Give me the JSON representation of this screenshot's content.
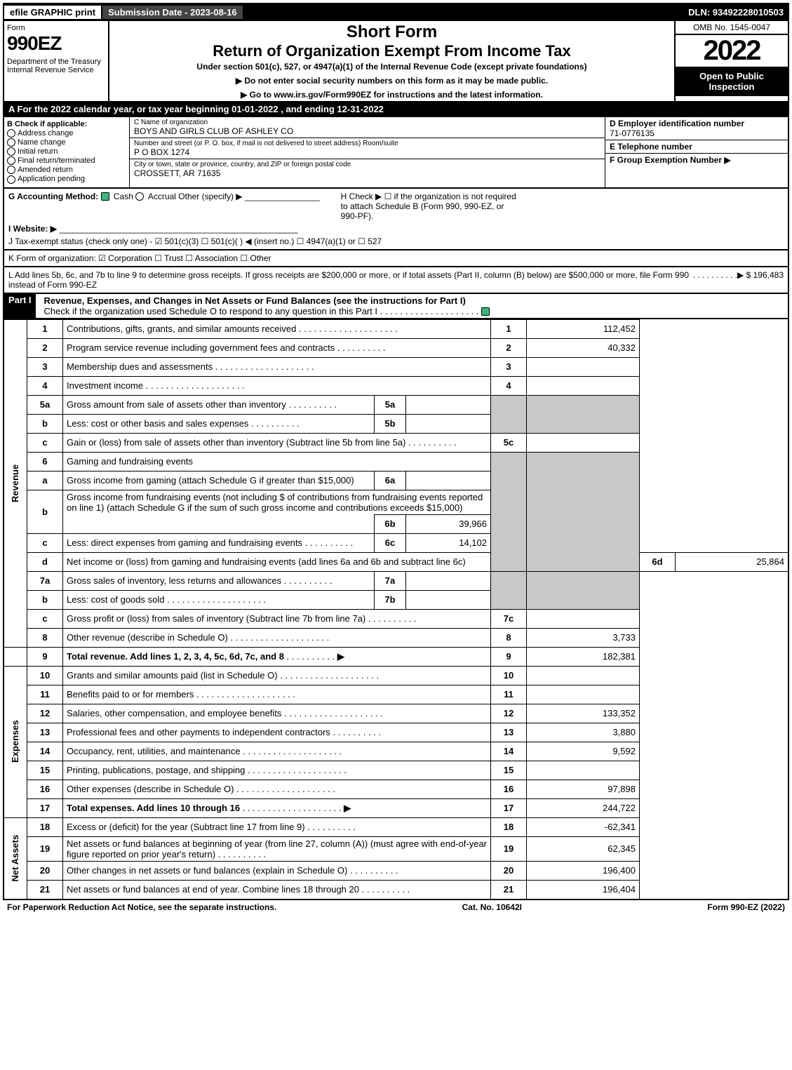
{
  "topbar": {
    "efile": "efile GRAPHIC print",
    "subdate": "Submission Date - 2023-08-16",
    "dln": "DLN: 93492228010503"
  },
  "header": {
    "form_word": "Form",
    "form_num": "990EZ",
    "dept": "Department of the Treasury\nInternal Revenue Service",
    "short": "Short Form",
    "title": "Return of Organization Exempt From Income Tax",
    "under": "Under section 501(c), 527, or 4947(a)(1) of the Internal Revenue Code (except private foundations)",
    "warn": "▶ Do not enter social security numbers on this form as it may be made public.",
    "goto": "▶ Go to www.irs.gov/Form990EZ for instructions and the latest information.",
    "omb": "OMB No. 1545-0047",
    "year": "2022",
    "open": "Open to Public Inspection"
  },
  "A": "A  For the 2022 calendar year, or tax year beginning 01-01-2022 , and ending 12-31-2022",
  "B": {
    "title": "B  Check if applicable:",
    "opts": [
      "Address change",
      "Name change",
      "Initial return",
      "Final return/terminated",
      "Amended return",
      "Application pending"
    ]
  },
  "C": {
    "name_lbl": "C Name of organization",
    "name": "BOYS AND GIRLS CLUB OF ASHLEY CO",
    "addr_lbl": "Number and street (or P. O. box, if mail is not delivered to street address)       Room/suite",
    "addr": "P O BOX 1274",
    "city_lbl": "City or town, state or province, country, and ZIP or foreign postal code",
    "city": "CROSSETT, AR  71635"
  },
  "D": {
    "ein_lbl": "D Employer identification number",
    "ein": "71-0776135",
    "tel_lbl": "E Telephone number",
    "tel": "",
    "grp_lbl": "F Group Exemption Number  ▶",
    "grp": ""
  },
  "GHI": {
    "g": "G Accounting Method:",
    "g_cash": "Cash",
    "g_accr": "Accrual",
    "g_other": "Other (specify) ▶",
    "h": "H  Check ▶  ☐  if the organization is not required to attach Schedule B (Form 990, 990-EZ, or 990-PF).",
    "i": "I Website: ▶",
    "j": "J Tax-exempt status (check only one) -  ☑ 501(c)(3)  ☐ 501(c)(  ) ◀ (insert no.)  ☐ 4947(a)(1) or  ☐ 527",
    "k": "K Form of organization:  ☑ Corporation   ☐ Trust   ☐ Association   ☐ Other",
    "l": "L Add lines 5b, 6c, and 7b to line 9 to determine gross receipts. If gross receipts are $200,000 or more, or if total assets (Part II, column (B) below) are $500,000 or more, file Form 990 instead of Form 990-EZ",
    "l_amt": "▶ $ 196,483"
  },
  "part1": {
    "title": "Revenue, Expenses, and Changes in Net Assets or Fund Balances (see the instructions for Part I)",
    "check": "Check if the organization used Schedule O to respond to any question in this Part I"
  },
  "rev_label": "Revenue",
  "exp_label": "Expenses",
  "na_label": "Net Assets",
  "lines": {
    "1": {
      "d": "Contributions, gifts, grants, and similar amounts received",
      "a": "112,452"
    },
    "2": {
      "d": "Program service revenue including government fees and contracts",
      "a": "40,332"
    },
    "3": {
      "d": "Membership dues and assessments",
      "a": ""
    },
    "4": {
      "d": "Investment income",
      "a": ""
    },
    "5a": {
      "d": "Gross amount from sale of assets other than inventory",
      "sv": ""
    },
    "5b": {
      "d": "Less: cost or other basis and sales expenses",
      "sv": ""
    },
    "5c": {
      "d": "Gain or (loss) from sale of assets other than inventory (Subtract line 5b from line 5a)",
      "a": ""
    },
    "6": {
      "d": "Gaming and fundraising events"
    },
    "6a": {
      "d": "Gross income from gaming (attach Schedule G if greater than $15,000)",
      "sv": ""
    },
    "6b_pre": "Gross income from fundraising events (not including $                      of contributions from fundraising events reported on line 1) (attach Schedule G if the sum of such gross income and contributions exceeds $15,000)",
    "6b": {
      "sv": "39,966"
    },
    "6c": {
      "d": "Less: direct expenses from gaming and fundraising events",
      "sv": "14,102"
    },
    "6d": {
      "d": "Net income or (loss) from gaming and fundraising events (add lines 6a and 6b and subtract line 6c)",
      "a": "25,864"
    },
    "7a": {
      "d": "Gross sales of inventory, less returns and allowances",
      "sv": ""
    },
    "7b": {
      "d": "Less: cost of goods sold",
      "sv": ""
    },
    "7c": {
      "d": "Gross profit or (loss) from sales of inventory (Subtract line 7b from line 7a)",
      "a": ""
    },
    "8": {
      "d": "Other revenue (describe in Schedule O)",
      "a": "3,733"
    },
    "9": {
      "d": "Total revenue. Add lines 1, 2, 3, 4, 5c, 6d, 7c, and 8",
      "a": "182,381"
    },
    "10": {
      "d": "Grants and similar amounts paid (list in Schedule O)",
      "a": ""
    },
    "11": {
      "d": "Benefits paid to or for members",
      "a": ""
    },
    "12": {
      "d": "Salaries, other compensation, and employee benefits",
      "a": "133,352"
    },
    "13": {
      "d": "Professional fees and other payments to independent contractors",
      "a": "3,880"
    },
    "14": {
      "d": "Occupancy, rent, utilities, and maintenance",
      "a": "9,592"
    },
    "15": {
      "d": "Printing, publications, postage, and shipping",
      "a": ""
    },
    "16": {
      "d": "Other expenses (describe in Schedule O)",
      "a": "97,898"
    },
    "17": {
      "d": "Total expenses. Add lines 10 through 16",
      "a": "244,722"
    },
    "18": {
      "d": "Excess or (deficit) for the year (Subtract line 17 from line 9)",
      "a": "-62,341"
    },
    "19": {
      "d": "Net assets or fund balances at beginning of year (from line 27, column (A)) (must agree with end-of-year figure reported on prior year's return)",
      "a": "62,345"
    },
    "20": {
      "d": "Other changes in net assets or fund balances (explain in Schedule O)",
      "a": "196,400"
    },
    "21": {
      "d": "Net assets or fund balances at end of year. Combine lines 18 through 20",
      "a": "196,404"
    }
  },
  "footer": {
    "left": "For Paperwork Reduction Act Notice, see the separate instructions.",
    "mid": "Cat. No. 10642I",
    "right": "Form 990-EZ (2022)"
  }
}
